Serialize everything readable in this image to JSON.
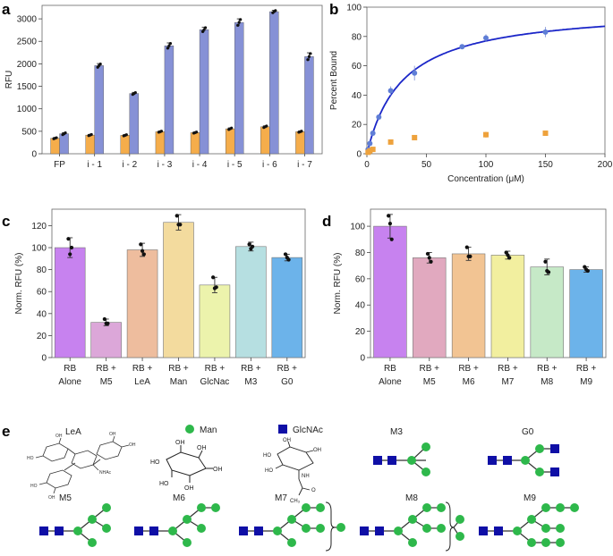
{
  "colors": {
    "fp_orange": "#f5ad4b",
    "blue_bar": "#8691d6",
    "fit_line": "#1b26c8",
    "point_blue": "#5f7ed6",
    "point_orange": "#eea23c",
    "man_green": "#2eb84b",
    "glcnac_blue": "#0f0fa6",
    "c_colors": [
      "#c782ef",
      "#dca7d9",
      "#eebd9e",
      "#f3db9e",
      "#ecf3ac",
      "#b6dfe1",
      "#6cb3ea"
    ],
    "d_colors": [
      "#c782ef",
      "#e1a9bf",
      "#f2c493",
      "#f2ef9f",
      "#c6e9c7",
      "#6cb3ea"
    ]
  },
  "panels": {
    "a": {
      "letter": "a"
    },
    "b": {
      "letter": "b"
    },
    "c": {
      "letter": "c"
    },
    "d": {
      "letter": "d"
    },
    "e": {
      "letter": "e"
    }
  },
  "chart_data": [
    {
      "id": "a",
      "type": "bar",
      "title": "",
      "xlabel": "",
      "ylabel": "RFU",
      "ylim": [
        0,
        3300
      ],
      "yticks": [
        0,
        500,
        1000,
        1500,
        2000,
        2500,
        3000
      ],
      "categories": [
        "FP",
        "i - 1",
        "i - 2",
        "i - 3",
        "i - 4",
        "i - 5",
        "i - 6",
        "i - 7"
      ],
      "series": [
        {
          "name": "orange",
          "values": [
            345,
            415,
            410,
            490,
            470,
            555,
            600,
            490
          ],
          "errors": [
            15,
            15,
            15,
            15,
            15,
            20,
            20,
            15
          ]
        },
        {
          "name": "blue",
          "values": [
            445,
            1960,
            1340,
            2400,
            2760,
            2920,
            3160,
            2160
          ],
          "errors": [
            25,
            45,
            25,
            65,
            55,
            80,
            30,
            85
          ]
        }
      ]
    },
    {
      "id": "b",
      "type": "scatter",
      "title": "",
      "xlabel": "Concentration (μM)",
      "ylabel": "Percent Bound",
      "xlim": [
        0,
        200
      ],
      "ylim": [
        0,
        100
      ],
      "xticks": [
        0,
        50,
        100,
        150,
        200
      ],
      "yticks": [
        0,
        20,
        40,
        60,
        80,
        100
      ],
      "series": [
        {
          "name": "blue points",
          "x": [
            1,
            2.5,
            5,
            10,
            20,
            40,
            80,
            100,
            150
          ],
          "y": [
            3,
            7,
            14,
            25,
            43,
            55,
            73,
            79,
            83
          ],
          "errors": [
            0.5,
            0.5,
            1,
            1,
            3,
            5,
            1.5,
            2.5,
            3.5
          ]
        },
        {
          "name": "orange squares",
          "x": [
            1,
            2.5,
            5,
            20,
            40,
            100,
            150
          ],
          "y": [
            1,
            2,
            3,
            8,
            11,
            13,
            14
          ],
          "errors": [
            0.5,
            0.5,
            0.5,
            1,
            1,
            2,
            1.5
          ]
        },
        {
          "name": "fit",
          "model": "y = Bmax*x/(Kd+x)",
          "Bmax": 100,
          "Kd": 30
        }
      ]
    },
    {
      "id": "c",
      "type": "bar",
      "title": "",
      "xlabel": "",
      "ylabel": "Norm. RFU (%)",
      "ylim": [
        0,
        135
      ],
      "yticks": [
        0,
        20,
        40,
        60,
        80,
        100,
        120
      ],
      "categories": [
        [
          "RB",
          "Alone"
        ],
        [
          "RB +",
          "M5"
        ],
        [
          "RB +",
          "LeA"
        ],
        [
          "RB +",
          "Man"
        ],
        [
          "RB +",
          "GlcNac"
        ],
        [
          "RB +",
          "M3"
        ],
        [
          "RB +",
          "G0"
        ]
      ],
      "values": [
        100,
        32,
        98,
        123,
        66,
        101,
        91
      ],
      "errors": [
        9,
        3,
        6,
        7,
        7,
        4,
        3
      ],
      "points": [
        [
          108,
          94,
          100
        ],
        [
          35,
          31,
          31
        ],
        [
          103,
          97,
          94
        ],
        [
          129,
          121,
          121
        ],
        [
          73,
          63,
          64
        ],
        [
          103,
          99,
          101
        ],
        [
          94,
          91,
          89
        ]
      ]
    },
    {
      "id": "d",
      "type": "bar",
      "title": "",
      "xlabel": "",
      "ylabel": "Norm. RFU (%)",
      "ylim": [
        0,
        113
      ],
      "yticks": [
        0,
        20,
        40,
        60,
        80,
        100
      ],
      "categories": [
        [
          "RB",
          "Alone"
        ],
        [
          "RB +",
          "M5"
        ],
        [
          "RB +",
          "M6"
        ],
        [
          "RB +",
          "M7"
        ],
        [
          "RB +",
          "M8"
        ],
        [
          "RB +",
          "M9"
        ]
      ],
      "values": [
        100,
        76,
        79,
        78,
        69,
        67
      ],
      "errors": [
        9,
        4,
        5,
        3,
        6,
        2
      ],
      "points": [
        [
          108,
          102,
          90
        ],
        [
          79,
          76,
          73
        ],
        [
          84,
          77,
          77
        ],
        [
          80,
          78,
          76
        ],
        [
          73,
          66,
          65
        ],
        [
          69,
          67,
          66
        ]
      ]
    }
  ],
  "glycans": {
    "legend_man": "Man",
    "legend_glcnac": "GlcNAc",
    "labels": {
      "LeA": "LeA",
      "M3": "M3",
      "G0": "G0",
      "M5": "M5",
      "M6": "M6",
      "M7": "M7",
      "M8": "M8",
      "M9": "M9"
    },
    "struct_text": {
      "oh": "OH",
      "ho": "HO",
      "nh": "NH",
      "ch3": "CH₃",
      "o": "O",
      "nhac": "NHAc"
    }
  }
}
